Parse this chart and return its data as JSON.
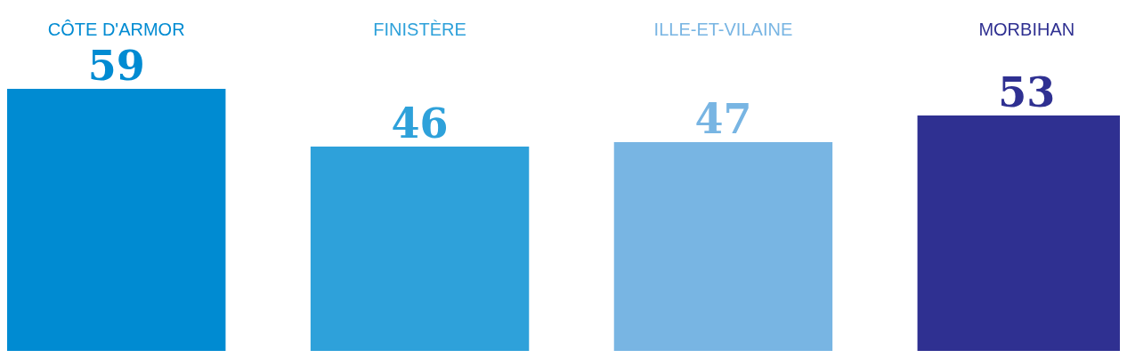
{
  "chart_data": {
    "type": "bar",
    "categories": [
      "CÔTE D'ARMOR",
      "FINISTÈRE",
      "ILLE-ET-VILAINE",
      "MORBIHAN"
    ],
    "values": [
      59,
      46,
      47,
      53
    ],
    "colors": [
      "#008bd2",
      "#2ea1da",
      "#78b5e3",
      "#2f3091"
    ],
    "data_labels": true
  }
}
